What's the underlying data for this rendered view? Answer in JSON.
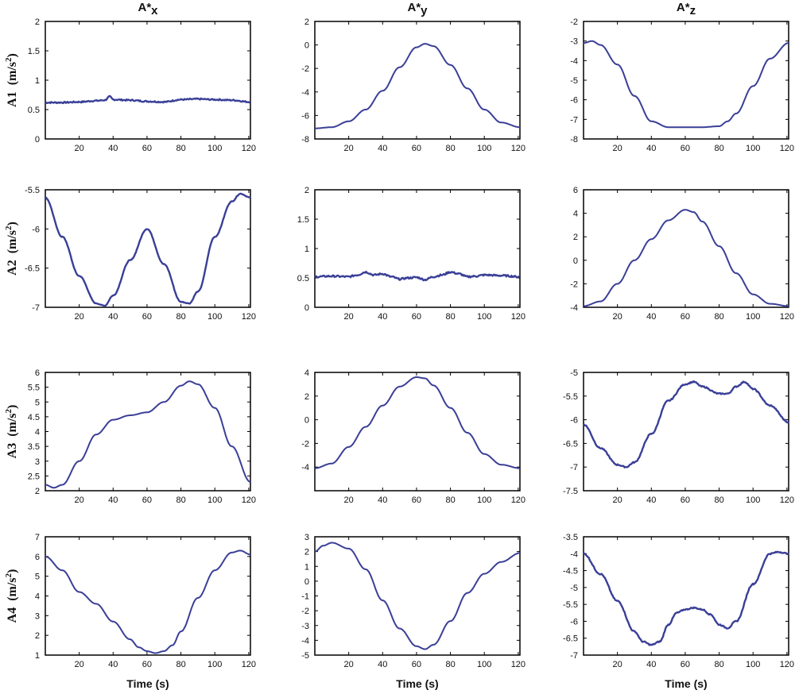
{
  "figure": {
    "column_titles": [
      {
        "base": "A*",
        "sub": "x"
      },
      {
        "base": "A*",
        "sub": "y"
      },
      {
        "base": "A*",
        "sub": "z"
      }
    ],
    "row_labels": [
      {
        "name": "A1",
        "unit": "(m/s",
        "sup": "2",
        "close": ")"
      },
      {
        "name": "A2",
        "unit": "(m/s",
        "sup": "2",
        "close": ")"
      },
      {
        "name": "A3",
        "unit": "(m/s",
        "sup": "2",
        "close": ")"
      },
      {
        "name": "A4",
        "unit": "(m/s",
        "sup": "2",
        "close": ")"
      }
    ],
    "xlabel": "Time (s)",
    "line_color": "#3a3f97"
  },
  "chart_data": [
    {
      "type": "line",
      "row": 0,
      "col": 0,
      "xlim": [
        0,
        121
      ],
      "ylim": [
        0,
        2
      ],
      "xticks": [
        20,
        40,
        60,
        80,
        100,
        120
      ],
      "yticks": [
        0,
        0.5,
        1,
        1.5,
        2
      ],
      "ytick_labels": [
        "0",
        "0.5",
        "1",
        "1.5",
        "2"
      ],
      "noise": 0.012,
      "x": [
        0,
        10,
        20,
        30,
        35,
        38,
        40,
        50,
        60,
        70,
        80,
        90,
        100,
        110,
        121
      ],
      "y": [
        0.62,
        0.62,
        0.63,
        0.65,
        0.66,
        0.72,
        0.67,
        0.66,
        0.64,
        0.63,
        0.67,
        0.68,
        0.67,
        0.66,
        0.63
      ]
    },
    {
      "type": "line",
      "row": 0,
      "col": 1,
      "xlim": [
        0,
        121
      ],
      "ylim": [
        -8,
        2
      ],
      "xticks": [
        20,
        40,
        60,
        80,
        100,
        120
      ],
      "yticks": [
        -8,
        -6,
        -4,
        -2,
        0,
        2
      ],
      "ytick_labels": [
        "-8",
        "-6",
        "-4",
        "-2",
        "0",
        "2"
      ],
      "noise": 0,
      "x": [
        0,
        10,
        20,
        30,
        40,
        50,
        60,
        65,
        70,
        80,
        90,
        100,
        110,
        121
      ],
      "y": [
        -7.1,
        -7.0,
        -6.5,
        -5.5,
        -3.9,
        -1.9,
        -0.2,
        0.1,
        -0.1,
        -1.7,
        -3.7,
        -5.5,
        -6.6,
        -7.0
      ]
    },
    {
      "type": "line",
      "row": 0,
      "col": 2,
      "xlim": [
        0,
        121
      ],
      "ylim": [
        -8,
        -2
      ],
      "xticks": [
        20,
        40,
        60,
        80,
        100,
        120
      ],
      "yticks": [
        -8,
        -7,
        -6,
        -5,
        -4,
        -3,
        -2
      ],
      "ytick_labels": [
        "-8",
        "-7",
        "-6",
        "-5",
        "-4",
        "-3",
        "-2"
      ],
      "noise": 0,
      "x": [
        0,
        5,
        10,
        20,
        30,
        40,
        50,
        60,
        70,
        80,
        85,
        90,
        100,
        110,
        121
      ],
      "y": [
        -3.1,
        -3.0,
        -3.2,
        -4.2,
        -5.8,
        -7.1,
        -7.4,
        -7.4,
        -7.4,
        -7.35,
        -7.1,
        -6.7,
        -5.3,
        -3.9,
        -3.1
      ]
    },
    {
      "type": "line",
      "row": 1,
      "col": 0,
      "xlim": [
        0,
        121
      ],
      "ylim": [
        -7,
        -5.5
      ],
      "xticks": [
        20,
        40,
        60,
        80,
        100,
        120
      ],
      "yticks": [
        -7,
        -6.5,
        -6,
        -5.5
      ],
      "ytick_labels": [
        "-7",
        "-6.5",
        "-6",
        "-5.5"
      ],
      "noise": 0.006,
      "x": [
        0,
        10,
        20,
        30,
        35,
        40,
        50,
        60,
        70,
        80,
        85,
        90,
        100,
        110,
        115,
        121
      ],
      "y": [
        -5.6,
        -6.1,
        -6.6,
        -6.95,
        -6.98,
        -6.85,
        -6.4,
        -6.0,
        -6.45,
        -6.93,
        -6.95,
        -6.8,
        -6.1,
        -5.65,
        -5.55,
        -5.6
      ]
    },
    {
      "type": "line",
      "row": 1,
      "col": 1,
      "xlim": [
        0,
        121
      ],
      "ylim": [
        0,
        2
      ],
      "xticks": [
        20,
        40,
        60,
        80,
        100,
        120
      ],
      "yticks": [
        0,
        0.5,
        1,
        1.5,
        2
      ],
      "ytick_labels": [
        "0",
        "0.5",
        "1",
        "1.5",
        "2"
      ],
      "noise": 0.015,
      "x": [
        0,
        10,
        20,
        25,
        30,
        35,
        40,
        45,
        50,
        55,
        60,
        65,
        70,
        75,
        80,
        85,
        90,
        95,
        100,
        110,
        121
      ],
      "y": [
        0.52,
        0.53,
        0.52,
        0.55,
        0.6,
        0.55,
        0.57,
        0.52,
        0.48,
        0.5,
        0.51,
        0.47,
        0.52,
        0.55,
        0.6,
        0.57,
        0.52,
        0.53,
        0.55,
        0.54,
        0.52
      ]
    },
    {
      "type": "line",
      "row": 1,
      "col": 2,
      "xlim": [
        0,
        121
      ],
      "ylim": [
        -4,
        6
      ],
      "xticks": [
        20,
        40,
        60,
        80,
        100,
        120
      ],
      "yticks": [
        -4,
        -2,
        0,
        2,
        4,
        6
      ],
      "ytick_labels": [
        "-4",
        "-2",
        "0",
        "2",
        "4",
        "6"
      ],
      "noise": 0,
      "x": [
        0,
        10,
        20,
        30,
        40,
        50,
        60,
        65,
        70,
        80,
        90,
        100,
        110,
        121
      ],
      "y": [
        -3.9,
        -3.5,
        -2.0,
        0.0,
        1.8,
        3.4,
        4.3,
        4.1,
        3.3,
        1.2,
        -1.1,
        -2.9,
        -3.7,
        -3.9
      ]
    },
    {
      "type": "line",
      "row": 2,
      "col": 0,
      "xlim": [
        0,
        121
      ],
      "ylim": [
        2,
        6
      ],
      "xticks": [
        20,
        40,
        60,
        80,
        100,
        120
      ],
      "yticks": [
        2,
        2.5,
        3,
        3.5,
        4,
        4.5,
        5,
        5.5,
        6
      ],
      "ytick_labels": [
        "2",
        "2.5",
        "3",
        "3.5",
        "4",
        "4.5",
        "5",
        "5.5",
        "6"
      ],
      "noise": 0,
      "x": [
        0,
        5,
        10,
        20,
        30,
        40,
        50,
        60,
        70,
        80,
        85,
        90,
        100,
        110,
        121
      ],
      "y": [
        2.2,
        2.1,
        2.2,
        3.0,
        3.9,
        4.4,
        4.55,
        4.65,
        5.0,
        5.55,
        5.7,
        5.6,
        4.8,
        3.5,
        2.3
      ]
    },
    {
      "type": "line",
      "row": 2,
      "col": 1,
      "xlim": [
        0,
        121
      ],
      "ylim": [
        -6,
        4
      ],
      "xticks": [
        20,
        40,
        60,
        80,
        100,
        120
      ],
      "yticks": [
        -6,
        -4,
        -2,
        0,
        2,
        4
      ],
      "ytick_labels": [
        "",
        "-4",
        "-2",
        "0",
        "2",
        "4"
      ],
      "noise": 0,
      "x": [
        0,
        10,
        20,
        30,
        40,
        50,
        60,
        65,
        70,
        80,
        90,
        100,
        110,
        121
      ],
      "y": [
        -4.1,
        -3.7,
        -2.3,
        -0.6,
        1.2,
        2.8,
        3.6,
        3.5,
        2.9,
        1.0,
        -1.1,
        -2.9,
        -3.8,
        -4.1
      ]
    },
    {
      "type": "line",
      "row": 2,
      "col": 2,
      "xlim": [
        0,
        121
      ],
      "ylim": [
        -7.5,
        -5
      ],
      "xticks": [
        20,
        40,
        60,
        80,
        100,
        120
      ],
      "yticks": [
        -7.5,
        -7,
        -6.5,
        -6,
        -5.5,
        -5
      ],
      "ytick_labels": [
        "-7.5",
        "-7",
        "-6.5",
        "-6",
        "-5.5",
        "-5"
      ],
      "noise": 0.01,
      "x": [
        0,
        10,
        20,
        25,
        30,
        40,
        50,
        60,
        65,
        70,
        80,
        85,
        90,
        95,
        100,
        110,
        121
      ],
      "y": [
        -6.1,
        -6.6,
        -6.95,
        -7.0,
        -6.9,
        -6.3,
        -5.6,
        -5.25,
        -5.2,
        -5.3,
        -5.45,
        -5.45,
        -5.3,
        -5.2,
        -5.35,
        -5.7,
        -6.05
      ]
    },
    {
      "type": "line",
      "row": 3,
      "col": 0,
      "xlim": [
        0,
        121
      ],
      "ylim": [
        1,
        7
      ],
      "xticks": [
        20,
        40,
        60,
        80,
        100,
        120
      ],
      "yticks": [
        1,
        2,
        3,
        4,
        5,
        6,
        7
      ],
      "ytick_labels": [
        "1",
        "2",
        "3",
        "4",
        "5",
        "6",
        "7"
      ],
      "noise": 0,
      "x": [
        0,
        10,
        20,
        30,
        40,
        50,
        55,
        60,
        65,
        70,
        75,
        80,
        90,
        100,
        110,
        115,
        121
      ],
      "y": [
        6.0,
        5.3,
        4.2,
        3.6,
        2.7,
        1.8,
        1.4,
        1.2,
        1.1,
        1.2,
        1.5,
        2.2,
        3.9,
        5.3,
        6.2,
        6.3,
        6.1
      ]
    },
    {
      "type": "line",
      "row": 3,
      "col": 1,
      "xlim": [
        0,
        121
      ],
      "ylim": [
        -5,
        3
      ],
      "xticks": [
        20,
        40,
        60,
        80,
        100,
        120
      ],
      "yticks": [
        -5,
        -4,
        -3,
        -2,
        -1,
        0,
        1,
        2,
        3
      ],
      "ytick_labels": [
        "-5",
        "-4",
        "-3",
        "-2",
        "-1",
        "0",
        "1",
        "2",
        "3"
      ],
      "noise": 0,
      "x": [
        0,
        5,
        10,
        20,
        30,
        40,
        50,
        60,
        65,
        70,
        80,
        90,
        100,
        110,
        121
      ],
      "y": [
        2.0,
        2.4,
        2.6,
        2.2,
        0.8,
        -1.3,
        -3.2,
        -4.4,
        -4.6,
        -4.3,
        -2.7,
        -0.8,
        0.5,
        1.3,
        1.9
      ]
    },
    {
      "type": "line",
      "row": 3,
      "col": 2,
      "xlim": [
        0,
        121
      ],
      "ylim": [
        -7,
        -3.5
      ],
      "xticks": [
        20,
        40,
        60,
        80,
        100,
        120
      ],
      "yticks": [
        -7,
        -6.5,
        -6,
        -5.5,
        -5,
        -4.5,
        -4,
        -3.5
      ],
      "ytick_labels": [
        "-7",
        "-6.5",
        "-6",
        "-5.5",
        "-5",
        "-4.5",
        "-4",
        "-3.5"
      ],
      "noise": 0.01,
      "x": [
        0,
        10,
        20,
        30,
        35,
        40,
        45,
        50,
        55,
        60,
        65,
        70,
        75,
        80,
        85,
        90,
        100,
        110,
        115,
        121
      ],
      "y": [
        -4.0,
        -4.6,
        -5.4,
        -6.3,
        -6.6,
        -6.7,
        -6.6,
        -6.1,
        -5.75,
        -5.65,
        -5.6,
        -5.65,
        -5.8,
        -6.1,
        -6.2,
        -6.0,
        -4.9,
        -4.0,
        -3.95,
        -4.0
      ]
    }
  ]
}
